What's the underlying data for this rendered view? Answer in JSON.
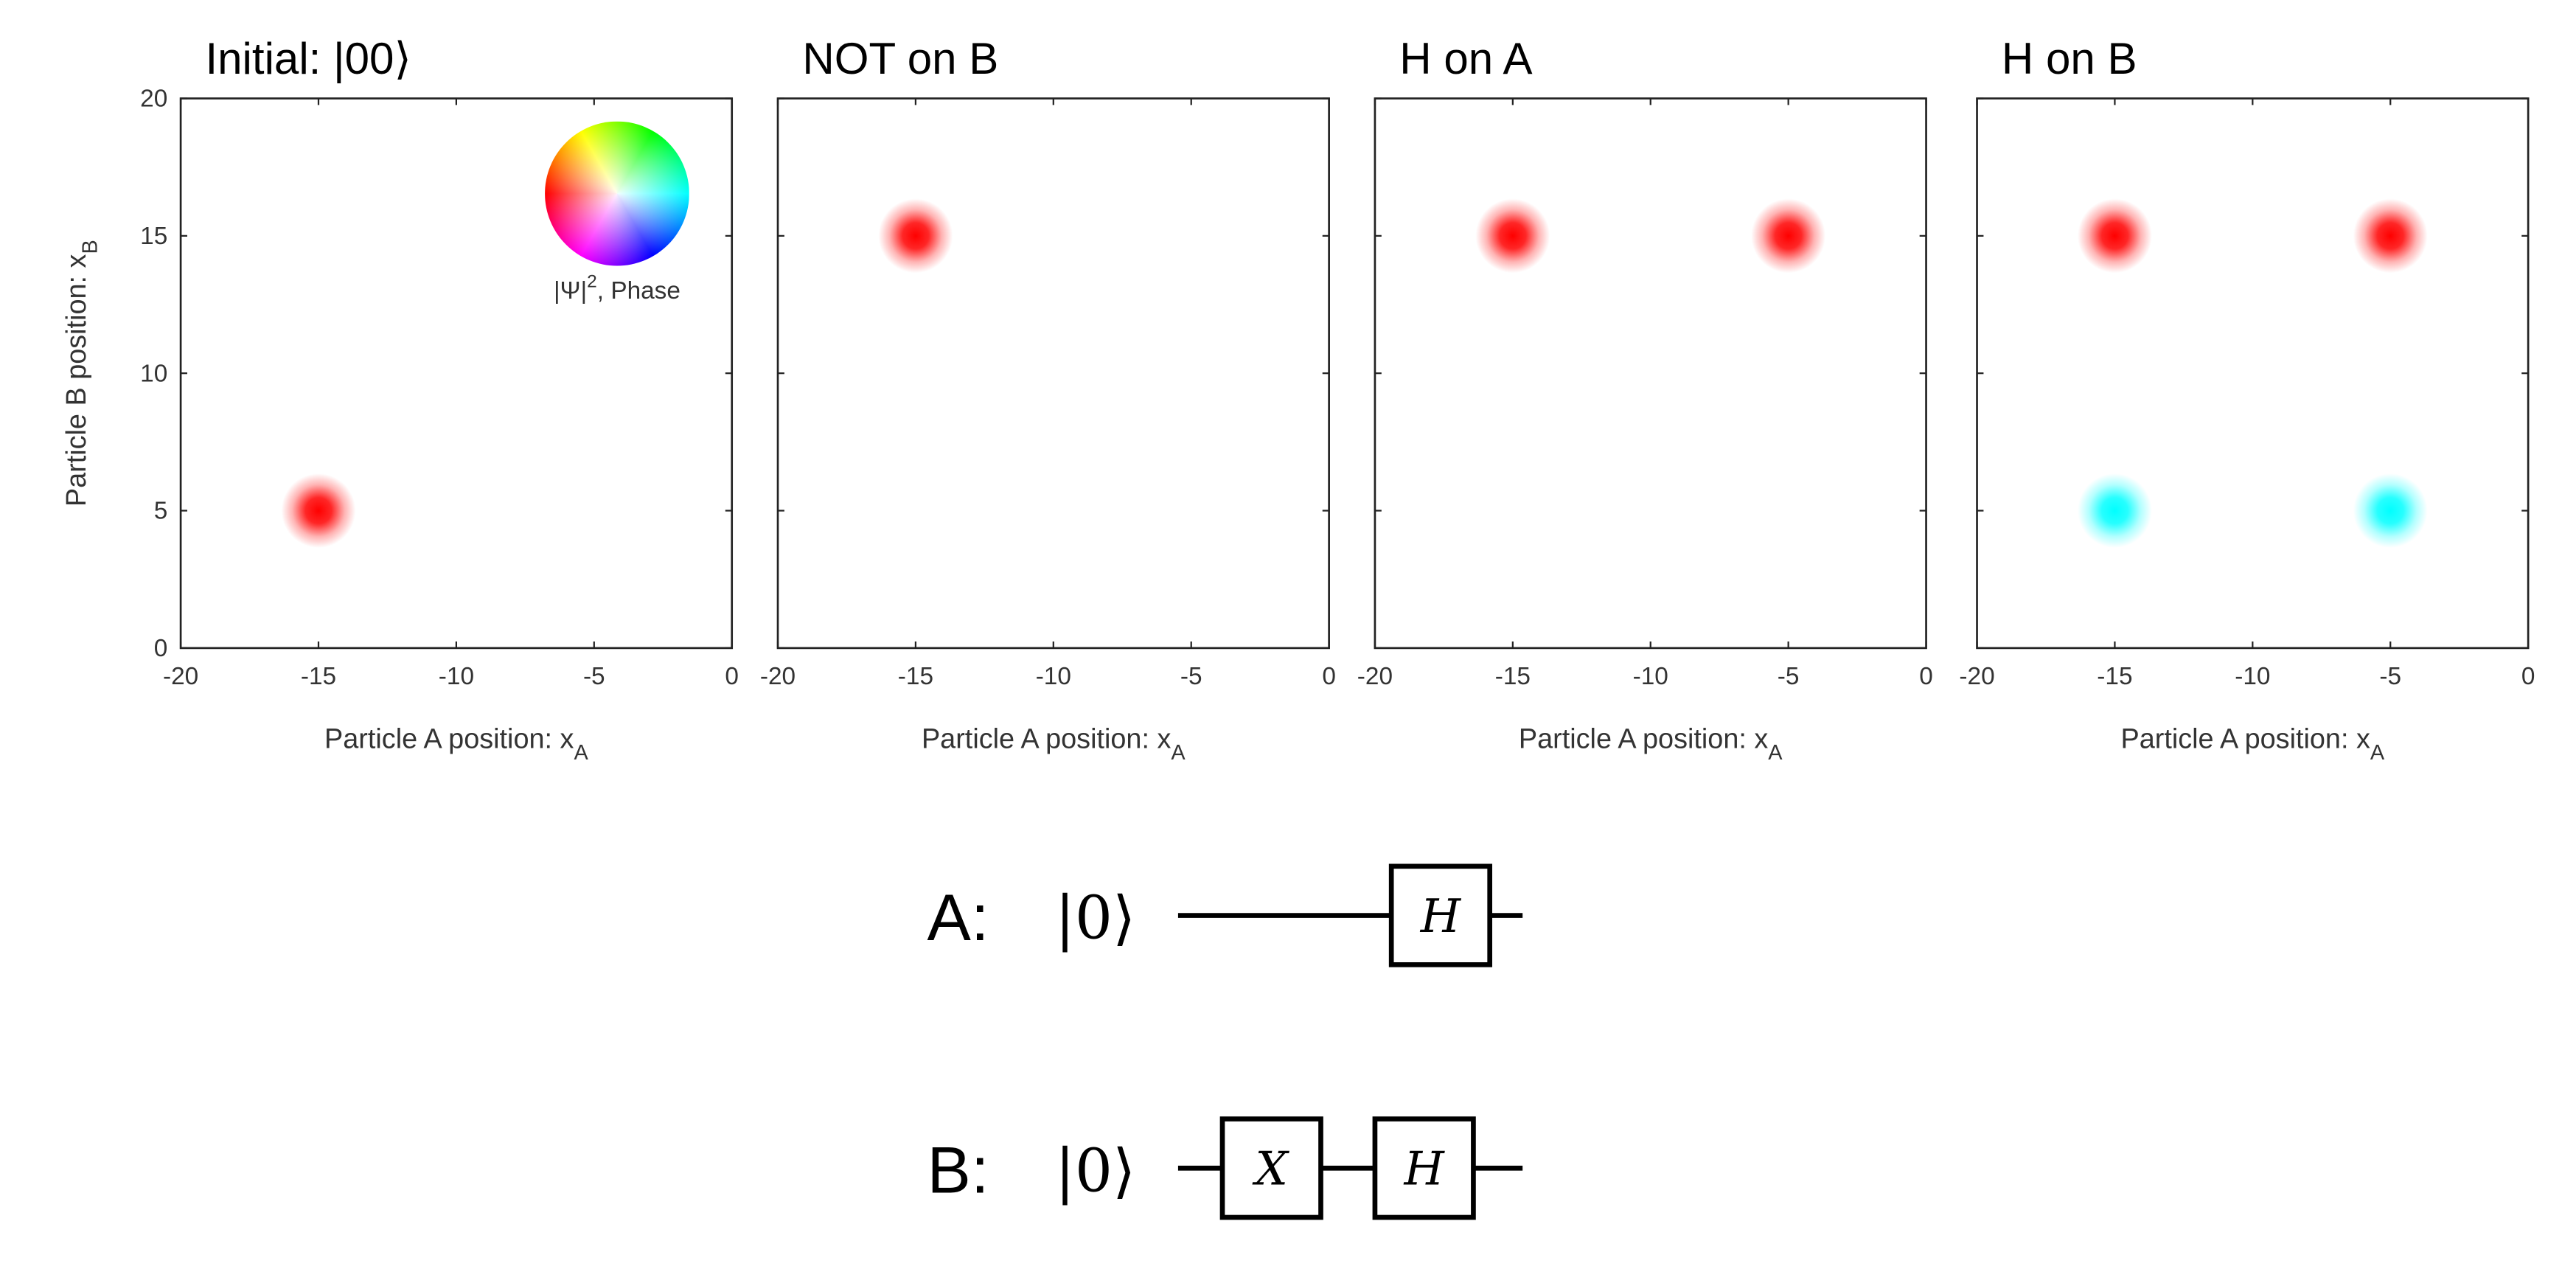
{
  "chart_data": [
    {
      "type": "scatter",
      "title": "Initial: |00⟩",
      "xlabel": {
        "text": "Particle A position: x",
        "sub": "A"
      },
      "ylabel": {
        "text": "Particle B position: x",
        "sub": "B"
      },
      "xlim": [
        -20,
        0
      ],
      "ylim": [
        0,
        20
      ],
      "xticks": [
        -20,
        -15,
        -10,
        -5,
        0
      ],
      "yticks": [
        0,
        5,
        10,
        15,
        20
      ],
      "ytick_labels": true,
      "x": [
        -15
      ],
      "y": [
        5
      ],
      "colors": [
        "#ff0000"
      ],
      "legend": {
        "text": "|Ψ|",
        "sup": "2",
        "rest": ", Phase"
      }
    },
    {
      "type": "scatter",
      "title": "NOT on B",
      "xlabel": {
        "text": "Particle A position: x",
        "sub": "A"
      },
      "xlim": [
        -20,
        0
      ],
      "ylim": [
        0,
        20
      ],
      "xticks": [
        -20,
        -15,
        -10,
        -5,
        0
      ],
      "yticks": [
        0,
        5,
        10,
        15,
        20
      ],
      "ytick_labels": false,
      "x": [
        -15
      ],
      "y": [
        15
      ],
      "colors": [
        "#ff0000"
      ]
    },
    {
      "type": "scatter",
      "title": "H on A",
      "xlabel": {
        "text": "Particle A position: x",
        "sub": "A"
      },
      "xlim": [
        -20,
        0
      ],
      "ylim": [
        0,
        20
      ],
      "xticks": [
        -20,
        -15,
        -10,
        -5,
        0
      ],
      "yticks": [
        0,
        5,
        10,
        15,
        20
      ],
      "ytick_labels": false,
      "x": [
        -15,
        -5
      ],
      "y": [
        15,
        15
      ],
      "colors": [
        "#ff0000",
        "#ff0000"
      ]
    },
    {
      "type": "scatter",
      "title": "H on B",
      "xlabel": {
        "text": "Particle A position: x",
        "sub": "A"
      },
      "xlim": [
        -20,
        0
      ],
      "ylim": [
        0,
        20
      ],
      "xticks": [
        -20,
        -15,
        -10,
        -5,
        0
      ],
      "yticks": [
        0,
        5,
        10,
        15,
        20
      ],
      "ytick_labels": false,
      "x": [
        -15,
        -5,
        -15,
        -5
      ],
      "y": [
        15,
        15,
        5,
        5
      ],
      "colors": [
        "#ff0000",
        "#ff0000",
        "#00ffff",
        "#00ffff"
      ]
    }
  ],
  "circuit": {
    "wires": [
      {
        "label": "A:",
        "state": "|0⟩",
        "gates": [
          "H"
        ]
      },
      {
        "label": "B:",
        "state": "|0⟩",
        "gates": [
          "X",
          "H"
        ]
      }
    ]
  }
}
